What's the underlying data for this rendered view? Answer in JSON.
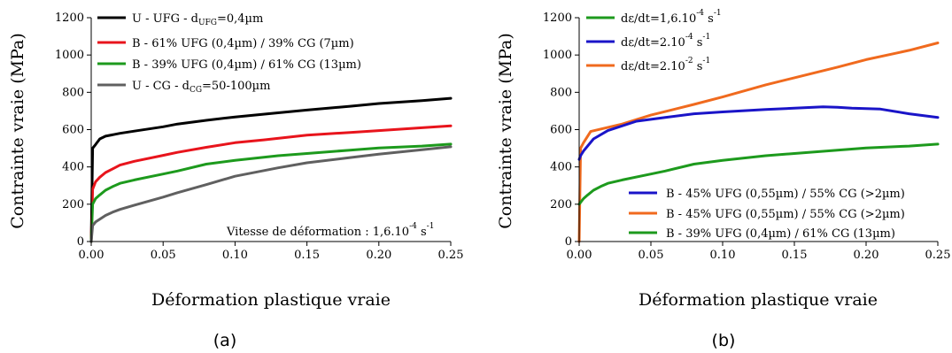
{
  "chart_data": [
    {
      "type": "line",
      "panel_label": "(a)",
      "xlabel": "Déformation plastique vraie",
      "ylabel": "Contrainte vraie (MPa)",
      "xlim": [
        0,
        0.25
      ],
      "ylim": [
        0,
        1200
      ],
      "xticks": [
        "0.00",
        "0.05",
        "0.10",
        "0.15",
        "0.20",
        "0.25"
      ],
      "yticks": [
        "0",
        "200",
        "400",
        "600",
        "800",
        "1000",
        "1200"
      ],
      "grid": false,
      "legend_position": "top-left",
      "annotation": {
        "text": "Vitesse de déformation : 1,6.10",
        "sup1": "-4",
        "mid": " s",
        "sup2": "-1",
        "position": "bottom-right"
      },
      "series": [
        {
          "name": "U - UFG - d",
          "name_sub": "UFG",
          "name_tail": "=0,4µm",
          "color": "#000000",
          "x": [
            0,
            0.001,
            0.003,
            0.006,
            0.01,
            0.02,
            0.03,
            0.05,
            0.06,
            0.08,
            0.1,
            0.13,
            0.15,
            0.18,
            0.2,
            0.23,
            0.25
          ],
          "y": [
            0,
            500,
            520,
            550,
            565,
            580,
            592,
            615,
            630,
            650,
            668,
            690,
            705,
            725,
            740,
            755,
            768
          ]
        },
        {
          "name": "B - 61% UFG (0,4µm) / 39% CG (7µm)",
          "color": "#e8141c",
          "x": [
            0,
            0.001,
            0.003,
            0.006,
            0.01,
            0.015,
            0.02,
            0.03,
            0.05,
            0.06,
            0.08,
            0.1,
            0.12,
            0.15,
            0.18,
            0.2,
            0.23,
            0.25
          ],
          "y": [
            0,
            280,
            320,
            345,
            370,
            390,
            410,
            430,
            462,
            478,
            505,
            530,
            545,
            570,
            585,
            595,
            610,
            620
          ]
        },
        {
          "name": "B - 39% UFG (0,4µm) / 61% CG (13µm)",
          "color": "#1d9a1d",
          "x": [
            0,
            0.001,
            0.003,
            0.006,
            0.01,
            0.015,
            0.02,
            0.03,
            0.05,
            0.06,
            0.08,
            0.1,
            0.13,
            0.15,
            0.18,
            0.2,
            0.23,
            0.25
          ],
          "y": [
            0,
            200,
            230,
            250,
            275,
            295,
            312,
            330,
            362,
            378,
            415,
            435,
            460,
            472,
            490,
            502,
            512,
            522
          ]
        },
        {
          "name": "U - CG - d",
          "name_sub": "CG",
          "name_tail": "=50-100µm",
          "color": "#606060",
          "x": [
            0,
            0.001,
            0.003,
            0.006,
            0.01,
            0.015,
            0.02,
            0.03,
            0.05,
            0.06,
            0.08,
            0.1,
            0.13,
            0.15,
            0.18,
            0.2,
            0.23,
            0.25
          ],
          "y": [
            0,
            85,
            105,
            120,
            140,
            158,
            172,
            195,
            238,
            262,
            305,
            350,
            395,
            422,
            450,
            468,
            492,
            508
          ]
        }
      ]
    },
    {
      "type": "line",
      "panel_label": "(b)",
      "xlabel": "Déformation plastique vraie",
      "ylabel": "Contrainte vraie (MPa)",
      "xlim": [
        0,
        0.25
      ],
      "ylim": [
        0,
        1200
      ],
      "xticks": [
        "0.00",
        "0.05",
        "0.10",
        "0.15",
        "0.20",
        "0.25"
      ],
      "yticks": [
        "0",
        "200",
        "400",
        "600",
        "800",
        "1000",
        "1200"
      ],
      "grid": false,
      "legend_top": {
        "position": "top-left",
        "entries": [
          {
            "label": "dε/dt=1,6.10",
            "sup1": "-4",
            "mid": " s",
            "sup2": "-1",
            "color": "#1d9a1d"
          },
          {
            "label": "dε/dt=2.10",
            "sup1": "-4",
            "mid": " s",
            "sup2": "-1",
            "color": "#1a14c8"
          },
          {
            "label": "dε/dt=2.10",
            "sup1": "-2",
            "mid": " s",
            "sup2": "-1",
            "color": "#f06a1e"
          }
        ]
      },
      "legend_bottom": {
        "position": "lower-right",
        "entries": [
          {
            "label": "B - 45% UFG (0,55µm) / 55% CG (>2µm)",
            "color": "#1a14c8"
          },
          {
            "label": "B - 45% UFG (0,55µm) / 55% CG (>2µm)",
            "color": "#f06a1e"
          },
          {
            "label": "B - 39% UFG (0,4µm) / 61% CG (13µm)",
            "color": "#1d9a1d"
          }
        ]
      },
      "series": [
        {
          "color": "#f06a1e",
          "x": [
            0,
            0.001,
            0.003,
            0.008,
            0.03,
            0.05,
            0.08,
            0.1,
            0.13,
            0.15,
            0.18,
            0.2,
            0.23,
            0.25
          ],
          "y": [
            0,
            500,
            530,
            590,
            630,
            678,
            735,
            775,
            840,
            878,
            935,
            975,
            1025,
            1065
          ]
        },
        {
          "color": "#1a14c8",
          "x": [
            0,
            0.001,
            0.003,
            0.01,
            0.02,
            0.04,
            0.06,
            0.08,
            0.1,
            0.13,
            0.15,
            0.17,
            0.18,
            0.19,
            0.21,
            0.23,
            0.25
          ],
          "y": [
            440,
            460,
            485,
            550,
            595,
            645,
            665,
            685,
            695,
            708,
            715,
            722,
            720,
            715,
            710,
            685,
            665
          ]
        },
        {
          "color": "#1d9a1d",
          "x": [
            0,
            0.001,
            0.003,
            0.006,
            0.01,
            0.015,
            0.02,
            0.03,
            0.05,
            0.06,
            0.08,
            0.1,
            0.13,
            0.15,
            0.18,
            0.2,
            0.23,
            0.25
          ],
          "y": [
            200,
            210,
            230,
            250,
            275,
            295,
            312,
            330,
            362,
            378,
            415,
            435,
            460,
            472,
            490,
            502,
            512,
            522
          ]
        }
      ]
    }
  ]
}
